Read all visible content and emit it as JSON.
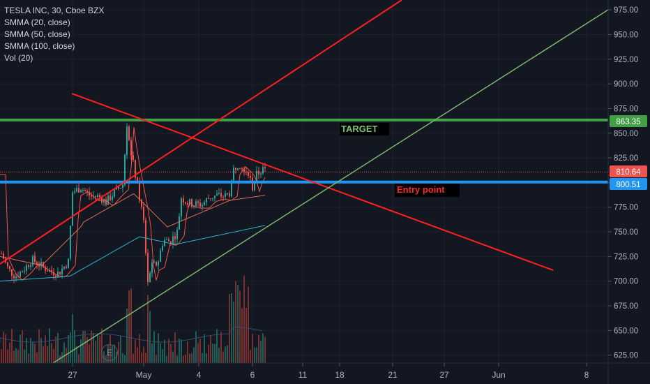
{
  "legend": {
    "symbol": "TESLA INC, 30, Cboe BZX",
    "smma20": "SMMA (20, close)",
    "smma50": "SMMA (50, close)",
    "smma100": "SMMA (100, close)",
    "vol": "Vol (20)"
  },
  "cursor_badge": "E",
  "colors": {
    "background": "#131722",
    "grid": "#1e222d",
    "up": "#26a69a",
    "down": "#ef5350",
    "target_line": "#43a047",
    "entry_line": "#2196f3",
    "trend_red": "#ff1f1f",
    "trend_green": "#7cb66f",
    "smma20": "#f5554a",
    "smma50": "#e06b55",
    "smma100": "#2ab7c9",
    "axis_text": "#b2b5be",
    "last_price_badge": "#ef5350"
  },
  "chart_data": {
    "type": "candlestick",
    "title": "TESLA INC, 30, Cboe BZX",
    "y_axis": {
      "ticks": [
        "975.00",
        "950.00",
        "925.00",
        "900.00",
        "875.00",
        "850.00",
        "825.00",
        "800.00",
        "775.00",
        "750.00",
        "725.00",
        "700.00",
        "675.00",
        "650.00",
        "625.00"
      ],
      "ylim": [
        617,
        985
      ]
    },
    "x_axis": {
      "ticks": [
        "27",
        "May",
        "4",
        "6",
        "11",
        "18",
        "21",
        "27",
        "Jun",
        "8"
      ]
    },
    "price_badges": {
      "target": "863.35",
      "last": "810.64",
      "entry": "800.51"
    },
    "annotations": {
      "target": "TARGET",
      "entry": "Entry point"
    },
    "horizontal_levels": [
      {
        "name": "target",
        "value": 863.35
      },
      {
        "name": "last",
        "value": 810.64
      },
      {
        "name": "entry",
        "value": 800.51
      }
    ],
    "trend_lines": [
      {
        "name": "rising-red",
        "from": [
          "Apr 21",
          712
        ],
        "to": [
          "May 18",
          985
        ]
      },
      {
        "name": "falling-red",
        "from": [
          "Apr 25",
          892
        ],
        "to": [
          "Jun 6",
          707
        ]
      },
      {
        "name": "rising-green",
        "from": [
          "Apr 25",
          617
        ],
        "to": [
          "Jun 8",
          979
        ]
      }
    ]
  }
}
